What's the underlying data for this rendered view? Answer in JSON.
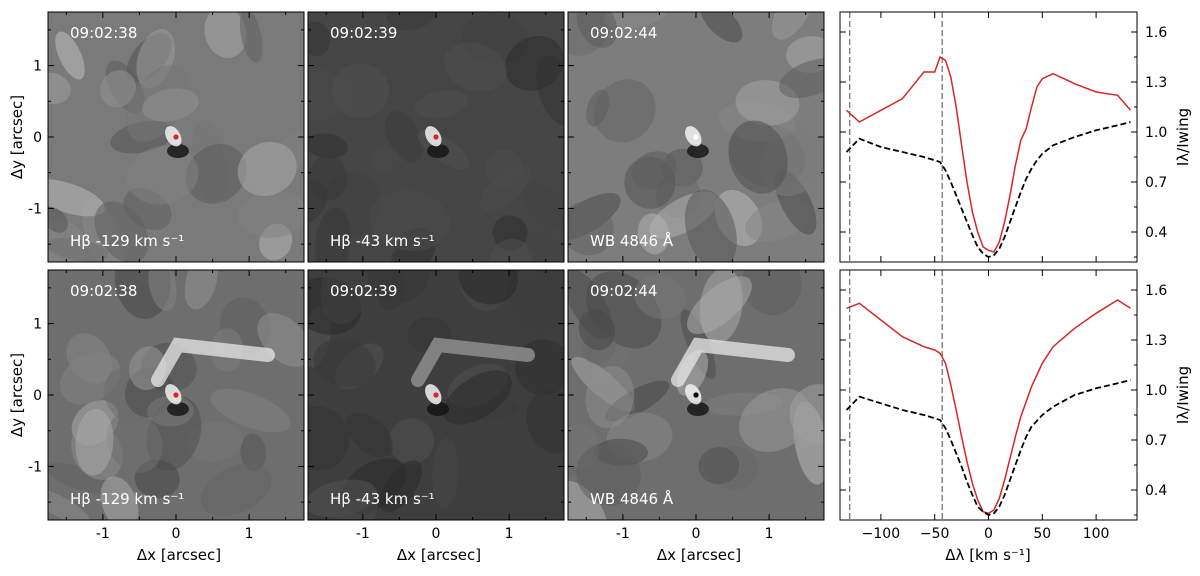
{
  "panels": {
    "axis": {
      "xlabel": "Δx [arcsec]",
      "ylabel": "Δy [arcsec]",
      "xticks": [
        "-1",
        "0",
        "1"
      ],
      "yticks": [
        "1",
        "0",
        "-1"
      ],
      "xlim": [
        -1.75,
        1.75
      ],
      "ylim": [
        -1.75,
        1.75
      ]
    },
    "rows": [
      {
        "images": [
          {
            "time": "09:02:38",
            "label": "Hβ -129 km s⁻¹",
            "dot_color": "#d62728",
            "base": "#7a7a7a"
          },
          {
            "time": "09:02:39",
            "label": "Hβ -43 km s⁻¹",
            "dot_color": "#d62728",
            "base": "#454545"
          },
          {
            "time": "09:02:44",
            "label": "WB 4846 Å",
            "dot_color": "#ffffff",
            "base": "#7d7d7d"
          }
        ]
      },
      {
        "images": [
          {
            "time": "09:02:38",
            "label": "Hβ -129 km s⁻¹",
            "dot_color": "#d62728",
            "base": "#6e6e6e"
          },
          {
            "time": "09:02:39",
            "label": "Hβ -43 km s⁻¹",
            "dot_color": "#d62728",
            "base": "#3e3e3e"
          },
          {
            "time": "09:02:44",
            "label": "WB 4846 Å",
            "dot_color": "#000000",
            "base": "#6e6e6e"
          }
        ]
      }
    ]
  },
  "chart_data": [
    {
      "type": "line",
      "xlim": [
        -138,
        138
      ],
      "ylim": [
        0.22,
        1.72
      ],
      "yticks": [
        0.4,
        0.7,
        1.0,
        1.3,
        1.6
      ],
      "ytick_labels": [
        "0.4",
        "0.7",
        "1.0",
        "1.3",
        "1.6"
      ],
      "ylabel": "Iλ/Iwing",
      "vlines": [
        -129,
        -43
      ],
      "series": [
        {
          "color": "#d62728",
          "style": "solid",
          "x": [
            -132,
            -120,
            -100,
            -80,
            -60,
            -50,
            -45,
            -40,
            -35,
            -30,
            -25,
            -20,
            -15,
            -10,
            -5,
            0,
            5,
            10,
            15,
            20,
            25,
            30,
            35,
            40,
            45,
            50,
            60,
            80,
            100,
            120,
            132
          ],
          "y": [
            1.13,
            1.06,
            1.13,
            1.2,
            1.36,
            1.36,
            1.45,
            1.43,
            1.33,
            1.15,
            0.92,
            0.7,
            0.52,
            0.4,
            0.31,
            0.29,
            0.28,
            0.34,
            0.46,
            0.62,
            0.8,
            0.95,
            1.02,
            1.15,
            1.27,
            1.32,
            1.35,
            1.29,
            1.24,
            1.22,
            1.13
          ]
        },
        {
          "color": "#000000",
          "style": "dashed",
          "x": [
            -132,
            -120,
            -100,
            -80,
            -60,
            -45,
            -40,
            -35,
            -30,
            -25,
            -20,
            -15,
            -10,
            -5,
            0,
            5,
            10,
            15,
            20,
            25,
            30,
            35,
            40,
            45,
            50,
            60,
            80,
            100,
            120,
            132
          ],
          "y": [
            0.88,
            0.96,
            0.91,
            0.88,
            0.85,
            0.82,
            0.77,
            0.7,
            0.62,
            0.54,
            0.46,
            0.38,
            0.31,
            0.27,
            0.25,
            0.26,
            0.3,
            0.37,
            0.46,
            0.55,
            0.64,
            0.72,
            0.78,
            0.83,
            0.87,
            0.92,
            0.97,
            1.01,
            1.04,
            1.06
          ]
        }
      ]
    },
    {
      "type": "line",
      "xlim": [
        -138,
        138
      ],
      "ylim": [
        0.22,
        1.72
      ],
      "yticks": [
        0.4,
        0.7,
        1.0,
        1.3,
        1.6
      ],
      "ytick_labels": [
        "0.4",
        "0.7",
        "1.0",
        "1.3",
        "1.6"
      ],
      "xticks": [
        -100,
        -50,
        0,
        50,
        100
      ],
      "xtick_labels": [
        "−100",
        "−50",
        "0",
        "50",
        "100"
      ],
      "xlabel": "Δλ [km s⁻¹]",
      "ylabel": "Iλ/Iwing",
      "vlines": [
        -129,
        -43
      ],
      "series": [
        {
          "color": "#d62728",
          "style": "solid",
          "x": [
            -132,
            -120,
            -100,
            -80,
            -60,
            -50,
            -45,
            -40,
            -35,
            -30,
            -25,
            -20,
            -15,
            -10,
            -5,
            0,
            5,
            10,
            15,
            20,
            25,
            30,
            40,
            50,
            60,
            80,
            100,
            120,
            132
          ],
          "y": [
            1.49,
            1.52,
            1.42,
            1.32,
            1.26,
            1.24,
            1.22,
            1.16,
            1.03,
            0.88,
            0.72,
            0.57,
            0.44,
            0.34,
            0.27,
            0.26,
            0.28,
            0.35,
            0.46,
            0.59,
            0.72,
            0.84,
            1.02,
            1.16,
            1.26,
            1.37,
            1.46,
            1.54,
            1.49
          ]
        },
        {
          "color": "#000000",
          "style": "dashed",
          "x": [
            -132,
            -120,
            -100,
            -80,
            -60,
            -45,
            -40,
            -35,
            -30,
            -25,
            -20,
            -15,
            -10,
            -5,
            0,
            5,
            10,
            15,
            20,
            25,
            30,
            35,
            40,
            50,
            60,
            80,
            100,
            120,
            132
          ],
          "y": [
            0.88,
            0.96,
            0.92,
            0.88,
            0.85,
            0.82,
            0.77,
            0.7,
            0.62,
            0.54,
            0.45,
            0.37,
            0.3,
            0.27,
            0.25,
            0.26,
            0.3,
            0.37,
            0.46,
            0.55,
            0.64,
            0.72,
            0.78,
            0.85,
            0.9,
            0.97,
            1.01,
            1.04,
            1.06
          ]
        }
      ]
    }
  ]
}
